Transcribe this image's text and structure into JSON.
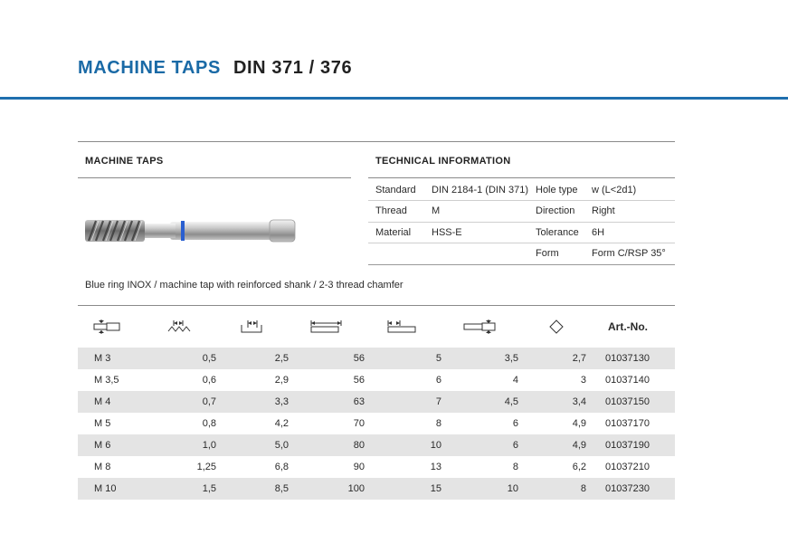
{
  "header": {
    "title_main": "MACHINE TAPS",
    "title_std": "DIN 371 / 376"
  },
  "left_section": {
    "label": "MACHINE TAPS",
    "image_name": "machine tap with blue ring"
  },
  "technical": {
    "label": "TECHNICAL INFORMATION",
    "rows": [
      [
        "Standard",
        "DIN 2184-1 (DIN 371)",
        "Hole type",
        "w (L<2d1)"
      ],
      [
        "Thread",
        "M",
        "Direction",
        "Right"
      ],
      [
        "Material",
        "HSS-E",
        "Tolerance",
        "6H"
      ],
      [
        "",
        "",
        "Form",
        "Form C/RSP 35°"
      ]
    ]
  },
  "description": "Blue ring INOX / machine tap with reinforced shank / 2-3 thread chamfer",
  "table": {
    "header_icons": [
      "nominal-diameter-icon",
      "pitch-icon",
      "core-drill-icon",
      "total-length-icon",
      "thread-length-icon",
      "shank-diameter-icon",
      "square-icon"
    ],
    "art_no_label": "Art.-No.",
    "rows": [
      [
        "M 3",
        "0,5",
        "2,5",
        "56",
        "5",
        "3,5",
        "2,7",
        "01037130"
      ],
      [
        "M 3,5",
        "0,6",
        "2,9",
        "56",
        "6",
        "4",
        "3",
        "01037140"
      ],
      [
        "M 4",
        "0,7",
        "3,3",
        "63",
        "7",
        "4,5",
        "3,4",
        "01037150"
      ],
      [
        "M 5",
        "0,8",
        "4,2",
        "70",
        "8",
        "6",
        "4,9",
        "01037170"
      ],
      [
        "M 6",
        "1,0",
        "5,0",
        "80",
        "10",
        "6",
        "4,9",
        "01037190"
      ],
      [
        "M 8",
        "1,25",
        "6,8",
        "90",
        "13",
        "8",
        "6,2",
        "01037210"
      ],
      [
        "M 10",
        "1,5",
        "8,5",
        "100",
        "15",
        "10",
        "8",
        "01037230"
      ]
    ]
  },
  "colors": {
    "brand_blue": "#1a6aa6",
    "rule_blue": "#1f6fae",
    "row_shade": "#e4e4e4",
    "tap_ring": "#2a5fd0"
  }
}
